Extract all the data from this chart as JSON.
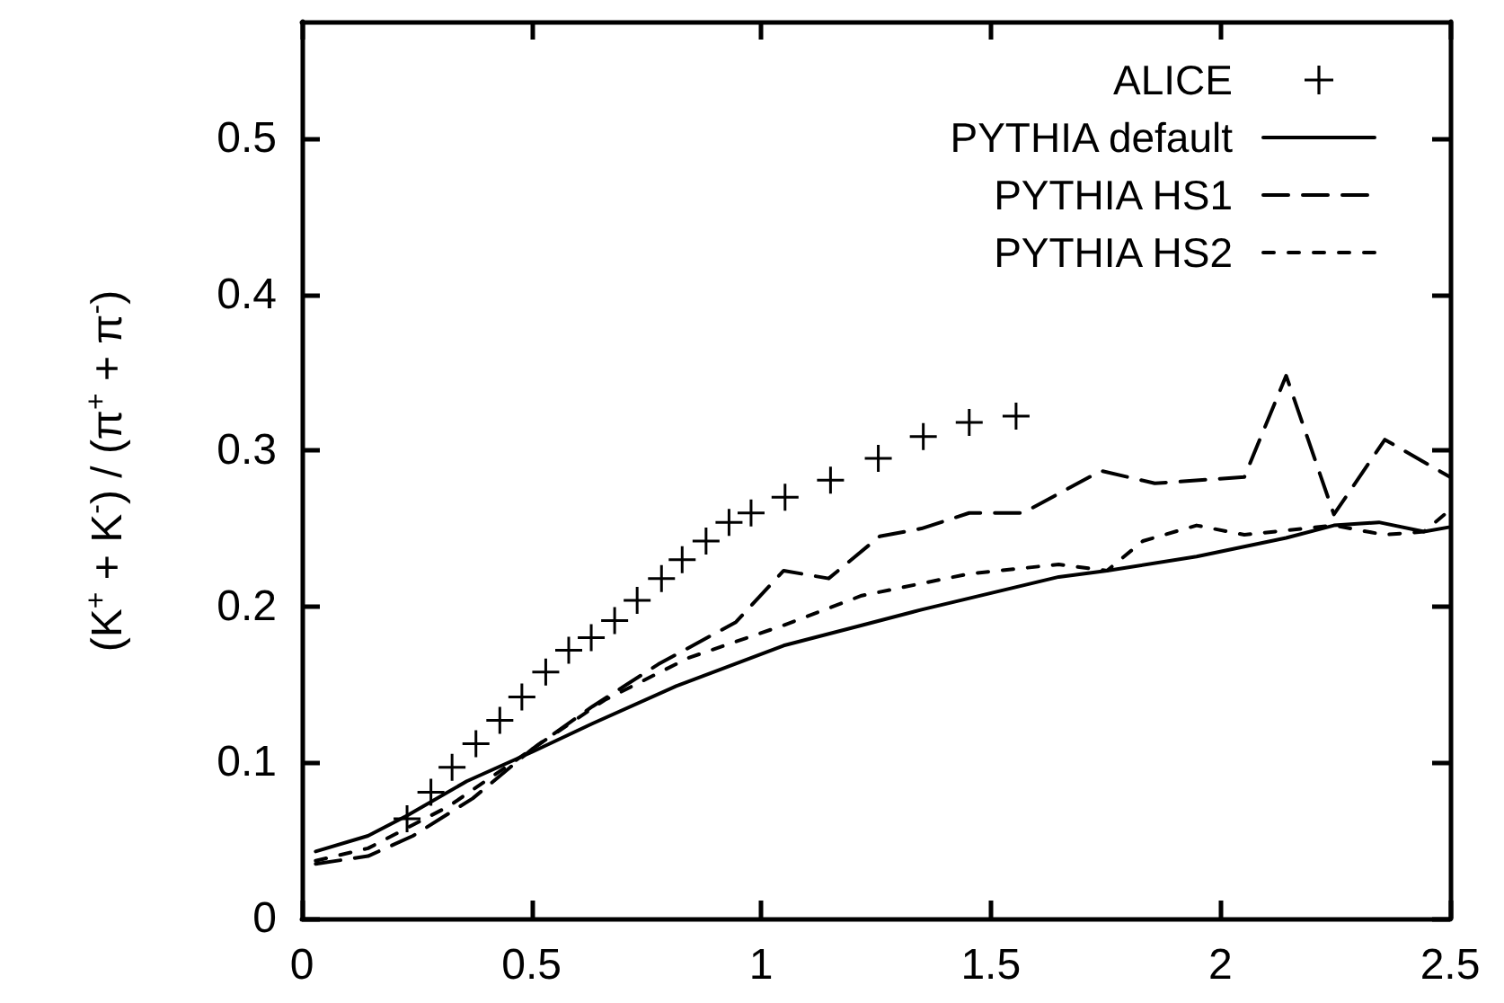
{
  "chart_data": {
    "type": "line",
    "ylabel": "(K$^{+}$ + K$^{-}$) / (π$^{+}$ + π$^{-}$)",
    "xlim": [
      0,
      2.5
    ],
    "xticks": [
      0,
      0.5,
      1,
      1.5,
      2,
      2.5
    ],
    "ylim": [
      0,
      0.575
    ],
    "yticks": [
      0,
      0.1,
      0.2,
      0.3,
      0.4,
      0.5
    ],
    "grid": false,
    "legend": "top right",
    "series": [
      {
        "name": "ALICE",
        "type": "scatter",
        "marker": "cross",
        "color": "#000000",
        "x": [
          0.229,
          0.281,
          0.327,
          0.379,
          0.431,
          0.479,
          0.531,
          0.581,
          0.63,
          0.681,
          0.73,
          0.783,
          0.828,
          0.88,
          0.93,
          0.978,
          1.052,
          1.151,
          1.255,
          1.353,
          1.453,
          1.555
        ],
        "values": [
          0.064,
          0.081,
          0.097,
          0.112,
          0.127,
          0.142,
          0.158,
          0.172,
          0.18,
          0.191,
          0.204,
          0.218,
          0.23,
          0.242,
          0.254,
          0.26,
          0.27,
          0.281,
          0.295,
          0.309,
          0.318,
          0.322
        ]
      },
      {
        "name": "PYTHIA default",
        "marker": "none",
        "line_style": "solid",
        "color": "#000000",
        "x": [
          0.03,
          0.144,
          0.229,
          0.359,
          0.503,
          0.633,
          0.815,
          1.049,
          1.219,
          1.349,
          1.648,
          1.753,
          1.948,
          2.143,
          2.247,
          2.345,
          2.443,
          2.5
        ],
        "values": [
          0.043,
          0.053,
          0.066,
          0.088,
          0.107,
          0.125,
          0.149,
          0.175,
          0.188,
          0.198,
          0.219,
          0.223,
          0.232,
          0.244,
          0.252,
          0.254,
          0.248,
          0.251
        ]
      },
      {
        "name": "PYTHIA HS1",
        "marker": "none",
        "line_style": "dashed",
        "color": "#000000",
        "x": [
          0.03,
          0.144,
          0.242,
          0.372,
          0.503,
          0.633,
          0.776,
          0.945,
          1.049,
          1.147,
          1.258,
          1.349,
          1.453,
          1.57,
          1.74,
          1.857,
          2.052,
          2.143,
          2.247,
          2.358,
          2.5
        ],
        "values": [
          0.035,
          0.04,
          0.053,
          0.077,
          0.109,
          0.136,
          0.163,
          0.19,
          0.223,
          0.218,
          0.245,
          0.25,
          0.26,
          0.26,
          0.287,
          0.279,
          0.283,
          0.348,
          0.259,
          0.307,
          0.283
        ]
      },
      {
        "name": "PYTHIA HS2",
        "marker": "none",
        "line_style": "dotted",
        "color": "#000000",
        "x": [
          0.03,
          0.144,
          0.32,
          0.503,
          0.659,
          0.841,
          1.049,
          1.219,
          1.453,
          1.648,
          1.753,
          1.831,
          1.948,
          2.052,
          2.247,
          2.357,
          2.443,
          2.5
        ],
        "values": [
          0.037,
          0.045,
          0.072,
          0.109,
          0.14,
          0.167,
          0.188,
          0.207,
          0.221,
          0.227,
          0.223,
          0.242,
          0.252,
          0.246,
          0.252,
          0.246,
          0.248,
          0.262
        ]
      }
    ]
  }
}
